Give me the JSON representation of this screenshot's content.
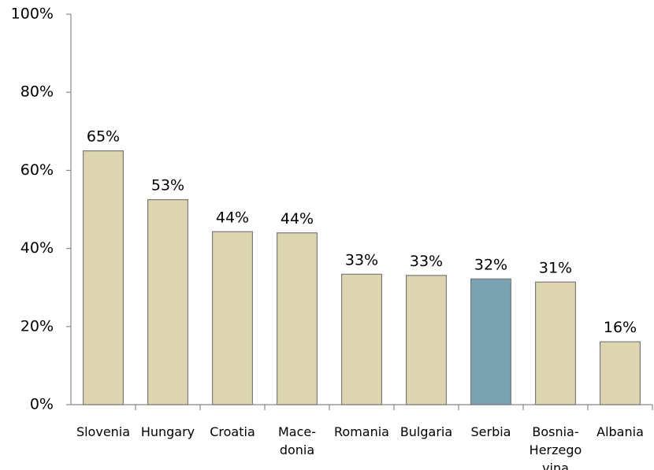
{
  "chart_data": {
    "type": "bar",
    "categories": [
      "Slovenia",
      "Hungary",
      "Croatia",
      "Mace-\ndonia",
      "Romania",
      "Bulgaria",
      "Serbia",
      "Bosnia-\nHerzego\nvina",
      "Albania"
    ],
    "values": [
      65,
      52.5,
      44.3,
      44,
      33.4,
      33.1,
      32.2,
      31.4,
      16.1
    ],
    "value_labels": [
      "65%",
      "53%",
      "44%",
      "44%",
      "33%",
      "33%",
      "32%",
      "31%",
      "16%"
    ],
    "colors": [
      "#ddd4b0",
      "#ddd4b0",
      "#ddd4b0",
      "#ddd4b0",
      "#ddd4b0",
      "#ddd4b0",
      "#7aa3b2",
      "#ddd4b0",
      "#ddd4b0"
    ],
    "ylim": [
      0,
      100
    ],
    "yticks": [
      {
        "value": 0,
        "label": "0%"
      },
      {
        "value": 20,
        "label": "20%"
      },
      {
        "value": 40,
        "label": "40%"
      },
      {
        "value": 60,
        "label": "60%"
      },
      {
        "value": 80,
        "label": "80%"
      },
      {
        "value": 100,
        "label": "100%"
      }
    ],
    "grid": false
  }
}
